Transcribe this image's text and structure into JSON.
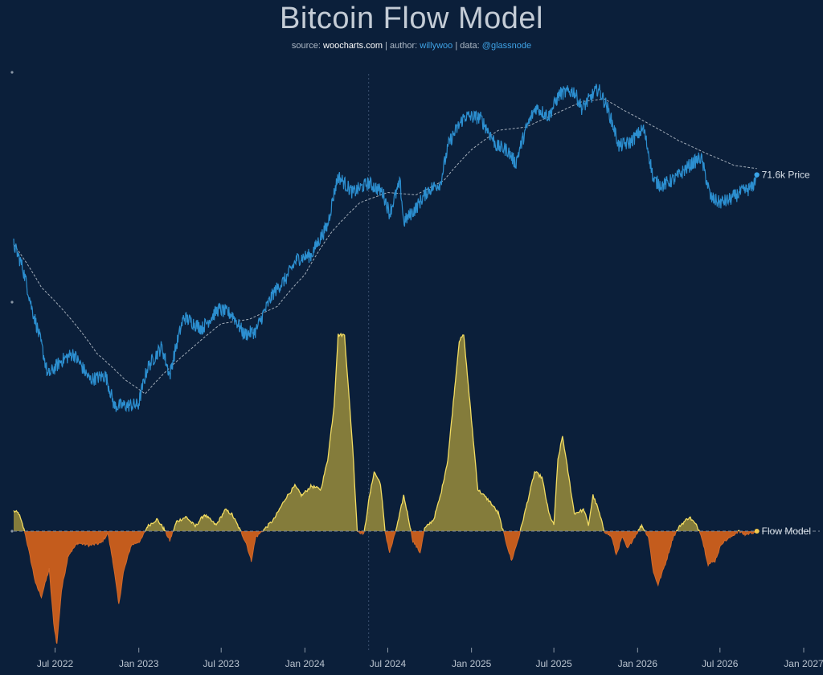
{
  "title": "Bitcoin Flow Model",
  "subtitle": {
    "source_label": "source:",
    "source": "woocharts.com",
    "author_label": "author:",
    "author": "willywoo",
    "data_label": "data:",
    "data": "@glassnode",
    "sep": "|"
  },
  "colors": {
    "background": "#0b1f3a",
    "price": "#2c8fd0",
    "price_ma": "#c8d0d8",
    "flow_positive_fill": "#9a8d3c",
    "flow_positive_line": "#f2dc62",
    "flow_negative_fill": "#c45c1d",
    "zero_line": "#7c8a99"
  },
  "chart_data": {
    "type": "line",
    "title": "Bitcoin Flow Model",
    "x_ticks": [
      "Jul 2022",
      "Jan 2023",
      "Jul 2023",
      "Jan 2024",
      "Jul 2024",
      "Jan 2025",
      "Jul 2025",
      "Jan 2026",
      "Jul 2026",
      "Jan 2027"
    ],
    "x_range": [
      "2022-04-01",
      "2027-01-01"
    ],
    "divider_date": "2024-05-20",
    "price_label": "71.6k Price",
    "flow_label": "Flow Model",
    "legend": "inline labels at right end of series",
    "grid": false,
    "series": [
      {
        "name": "Price",
        "style": "solid blue, noisy",
        "points": [
          [
            "2022-04-01",
            46
          ],
          [
            "2022-04-20",
            40
          ],
          [
            "2022-05-10",
            31
          ],
          [
            "2022-06-15",
            20
          ],
          [
            "2022-07-15",
            22
          ],
          [
            "2022-08-10",
            23
          ],
          [
            "2022-09-15",
            19.5
          ],
          [
            "2022-10-20",
            20
          ],
          [
            "2022-11-08",
            16.5
          ],
          [
            "2022-12-31",
            16.6
          ],
          [
            "2023-01-20",
            21
          ],
          [
            "2023-02-20",
            24
          ],
          [
            "2023-03-10",
            20
          ],
          [
            "2023-04-10",
            29
          ],
          [
            "2023-05-20",
            27
          ],
          [
            "2023-06-25",
            30.5
          ],
          [
            "2023-07-25",
            29.5
          ],
          [
            "2023-08-20",
            26
          ],
          [
            "2023-09-15",
            26.5
          ],
          [
            "2023-10-25",
            34
          ],
          [
            "2023-11-20",
            37
          ],
          [
            "2023-12-15",
            42
          ],
          [
            "2024-01-15",
            43
          ],
          [
            "2024-02-20",
            52
          ],
          [
            "2024-03-14",
            71
          ],
          [
            "2024-04-15",
            64
          ],
          [
            "2024-05-20",
            68
          ],
          [
            "2024-06-20",
            64
          ],
          [
            "2024-07-05",
            56
          ],
          [
            "2024-07-28",
            68
          ],
          [
            "2024-08-05",
            53
          ],
          [
            "2024-09-01",
            58
          ],
          [
            "2024-09-28",
            65
          ],
          [
            "2024-10-25",
            68
          ],
          [
            "2024-11-13",
            88
          ],
          [
            "2024-12-17",
            104
          ],
          [
            "2025-01-20",
            103
          ],
          [
            "2025-02-25",
            86
          ],
          [
            "2025-03-20",
            84
          ],
          [
            "2025-04-08",
            77
          ],
          [
            "2025-04-30",
            95
          ],
          [
            "2025-05-22",
            110
          ],
          [
            "2025-06-20",
            104
          ],
          [
            "2025-07-14",
            120
          ],
          [
            "2025-08-14",
            122
          ],
          [
            "2025-09-01",
            109
          ],
          [
            "2025-10-06",
            124
          ],
          [
            "2025-10-25",
            111
          ],
          [
            "2025-11-21",
            86
          ],
          [
            "2025-12-15",
            88
          ],
          [
            "2026-01-14",
            96
          ],
          [
            "2026-02-05",
            69
          ],
          [
            "2026-02-25",
            67
          ],
          [
            "2026-03-25",
            70
          ],
          [
            "2026-04-25",
            76
          ],
          [
            "2026-05-20",
            80
          ],
          [
            "2026-06-10",
            62
          ],
          [
            "2026-06-30",
            60
          ],
          [
            "2026-07-20",
            61
          ],
          [
            "2026-08-15",
            64
          ],
          [
            "2026-09-10",
            66
          ],
          [
            "2026-09-20",
            71.6
          ]
        ]
      },
      {
        "name": "Price MA",
        "style": "dashed light grey",
        "points": [
          [
            "2022-04-01",
            46
          ],
          [
            "2022-06-01",
            35
          ],
          [
            "2022-08-01",
            29
          ],
          [
            "2022-10-01",
            23
          ],
          [
            "2022-12-01",
            19.5
          ],
          [
            "2023-01-15",
            17.8
          ],
          [
            "2023-03-01",
            20.5
          ],
          [
            "2023-05-01",
            24
          ],
          [
            "2023-07-01",
            27.8
          ],
          [
            "2023-09-01",
            28.6
          ],
          [
            "2023-11-01",
            31
          ],
          [
            "2024-01-01",
            38
          ],
          [
            "2024-03-01",
            50
          ],
          [
            "2024-05-01",
            60
          ],
          [
            "2024-07-01",
            64
          ],
          [
            "2024-09-01",
            63
          ],
          [
            "2024-11-01",
            69
          ],
          [
            "2025-01-01",
            84
          ],
          [
            "2025-03-01",
            95
          ],
          [
            "2025-05-01",
            97
          ],
          [
            "2025-07-01",
            105
          ],
          [
            "2025-09-01",
            114
          ],
          [
            "2025-10-20",
            116
          ],
          [
            "2025-12-01",
            108
          ],
          [
            "2026-02-01",
            98
          ],
          [
            "2026-04-01",
            89
          ],
          [
            "2026-06-01",
            82
          ],
          [
            "2026-08-01",
            76
          ],
          [
            "2026-09-20",
            74.5
          ]
        ]
      },
      {
        "name": "Flow Model",
        "style": "filled oscillator around zero, yellow above, orange below",
        "points": [
          [
            "2022-04-01",
            0.17
          ],
          [
            "2022-04-12",
            0.15
          ],
          [
            "2022-04-25",
            0.0
          ],
          [
            "2022-05-05",
            -0.18
          ],
          [
            "2022-05-20",
            -0.45
          ],
          [
            "2022-06-01",
            -0.55
          ],
          [
            "2022-06-18",
            -0.32
          ],
          [
            "2022-06-28",
            -0.78
          ],
          [
            "2022-07-05",
            -0.95
          ],
          [
            "2022-07-15",
            -0.5
          ],
          [
            "2022-07-30",
            -0.2
          ],
          [
            "2022-08-20",
            -0.1
          ],
          [
            "2022-09-15",
            -0.12
          ],
          [
            "2022-10-10",
            -0.1
          ],
          [
            "2022-10-25",
            -0.02
          ],
          [
            "2022-11-05",
            -0.25
          ],
          [
            "2022-11-18",
            -0.62
          ],
          [
            "2022-11-28",
            -0.35
          ],
          [
            "2022-12-15",
            -0.12
          ],
          [
            "2023-01-05",
            -0.08
          ],
          [
            "2023-01-20",
            0.04
          ],
          [
            "2023-02-10",
            0.1
          ],
          [
            "2023-02-25",
            0.02
          ],
          [
            "2023-03-10",
            -0.08
          ],
          [
            "2023-03-25",
            0.08
          ],
          [
            "2023-04-15",
            0.12
          ],
          [
            "2023-05-05",
            0.04
          ],
          [
            "2023-05-25",
            0.14
          ],
          [
            "2023-06-20",
            0.05
          ],
          [
            "2023-07-10",
            0.18
          ],
          [
            "2023-07-25",
            0.14
          ],
          [
            "2023-08-10",
            0.02
          ],
          [
            "2023-08-25",
            -0.1
          ],
          [
            "2023-09-05",
            -0.25
          ],
          [
            "2023-09-15",
            -0.05
          ],
          [
            "2023-10-05",
            0.02
          ],
          [
            "2023-10-25",
            0.1
          ],
          [
            "2023-11-20",
            0.28
          ],
          [
            "2023-12-10",
            0.38
          ],
          [
            "2023-12-25",
            0.3
          ],
          [
            "2024-01-15",
            0.38
          ],
          [
            "2024-02-05",
            0.35
          ],
          [
            "2024-02-20",
            0.6
          ],
          [
            "2024-03-05",
            1.05
          ],
          [
            "2024-03-14",
            1.65
          ],
          [
            "2024-03-28",
            1.65
          ],
          [
            "2024-04-15",
            0.7
          ],
          [
            "2024-04-25",
            0.0
          ],
          [
            "2024-05-10",
            -0.02
          ],
          [
            "2024-05-20",
            0.25
          ],
          [
            "2024-06-01",
            0.5
          ],
          [
            "2024-06-15",
            0.4
          ],
          [
            "2024-06-25",
            0.0
          ],
          [
            "2024-07-05",
            -0.18
          ],
          [
            "2024-07-15",
            -0.05
          ],
          [
            "2024-07-25",
            0.1
          ],
          [
            "2024-08-05",
            0.3
          ],
          [
            "2024-08-15",
            0.12
          ],
          [
            "2024-08-25",
            -0.08
          ],
          [
            "2024-09-10",
            -0.18
          ],
          [
            "2024-09-20",
            0.02
          ],
          [
            "2024-10-10",
            0.1
          ],
          [
            "2024-10-25",
            0.3
          ],
          [
            "2024-11-10",
            0.6
          ],
          [
            "2024-11-25",
            1.2
          ],
          [
            "2024-12-05",
            1.6
          ],
          [
            "2024-12-15",
            1.65
          ],
          [
            "2024-12-28",
            1.1
          ],
          [
            "2025-01-15",
            0.35
          ],
          [
            "2025-02-10",
            0.25
          ],
          [
            "2025-03-01",
            0.15
          ],
          [
            "2025-03-15",
            -0.05
          ],
          [
            "2025-03-30",
            -0.25
          ],
          [
            "2025-04-15",
            -0.05
          ],
          [
            "2025-05-01",
            0.2
          ],
          [
            "2025-05-20",
            0.5
          ],
          [
            "2025-06-05",
            0.45
          ],
          [
            "2025-06-20",
            0.15
          ],
          [
            "2025-07-01",
            0.05
          ],
          [
            "2025-07-10",
            0.6
          ],
          [
            "2025-07-20",
            0.8
          ],
          [
            "2025-07-30",
            0.55
          ],
          [
            "2025-08-15",
            0.15
          ],
          [
            "2025-09-05",
            0.18
          ],
          [
            "2025-09-15",
            0.05
          ],
          [
            "2025-09-25",
            0.3
          ],
          [
            "2025-10-05",
            0.2
          ],
          [
            "2025-10-20",
            0.0
          ],
          [
            "2025-11-05",
            -0.05
          ],
          [
            "2025-11-15",
            -0.2
          ],
          [
            "2025-11-28",
            -0.05
          ],
          [
            "2025-12-10",
            -0.15
          ],
          [
            "2025-12-20",
            -0.08
          ],
          [
            "2026-01-10",
            0.05
          ],
          [
            "2026-01-25",
            -0.05
          ],
          [
            "2026-02-05",
            -0.35
          ],
          [
            "2026-02-15",
            -0.45
          ],
          [
            "2026-03-05",
            -0.25
          ],
          [
            "2026-03-20",
            -0.05
          ],
          [
            "2026-04-05",
            0.05
          ],
          [
            "2026-04-25",
            0.12
          ],
          [
            "2026-05-10",
            0.05
          ],
          [
            "2026-05-20",
            -0.02
          ],
          [
            "2026-06-05",
            -0.28
          ],
          [
            "2026-06-20",
            -0.25
          ],
          [
            "2026-07-05",
            -0.1
          ],
          [
            "2026-07-25",
            -0.05
          ],
          [
            "2026-08-10",
            0.0
          ],
          [
            "2026-08-25",
            -0.03
          ],
          [
            "2026-09-20",
            0.0
          ]
        ]
      }
    ]
  }
}
